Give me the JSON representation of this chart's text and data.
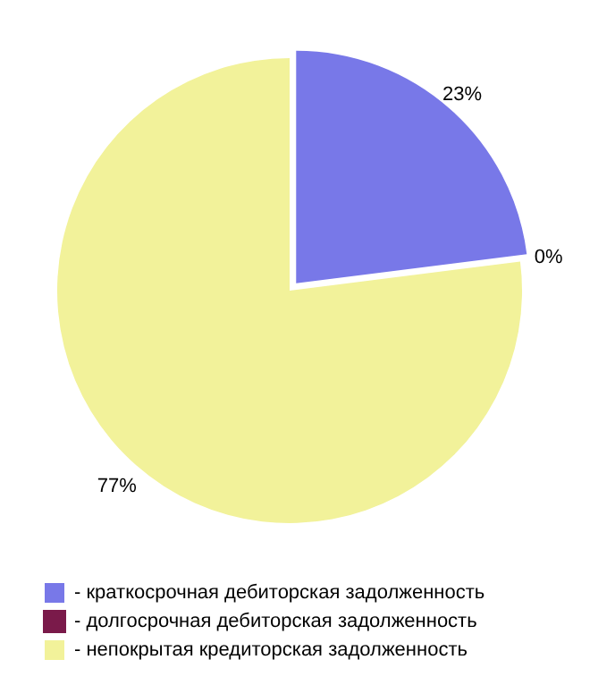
{
  "chart_data": {
    "type": "pie",
    "categories": [
      "- краткосрочная дебиторская задолженность",
      "- долгосрочная дебиторская задолженность",
      "- непокрытая кредиторская задолженность"
    ],
    "values": [
      23,
      0,
      77
    ],
    "colors": [
      "#7878e8",
      "#7a1a4a",
      "#f2f29a"
    ],
    "value_labels": [
      "23%",
      "0%",
      "77%"
    ],
    "legend": "bottom"
  }
}
